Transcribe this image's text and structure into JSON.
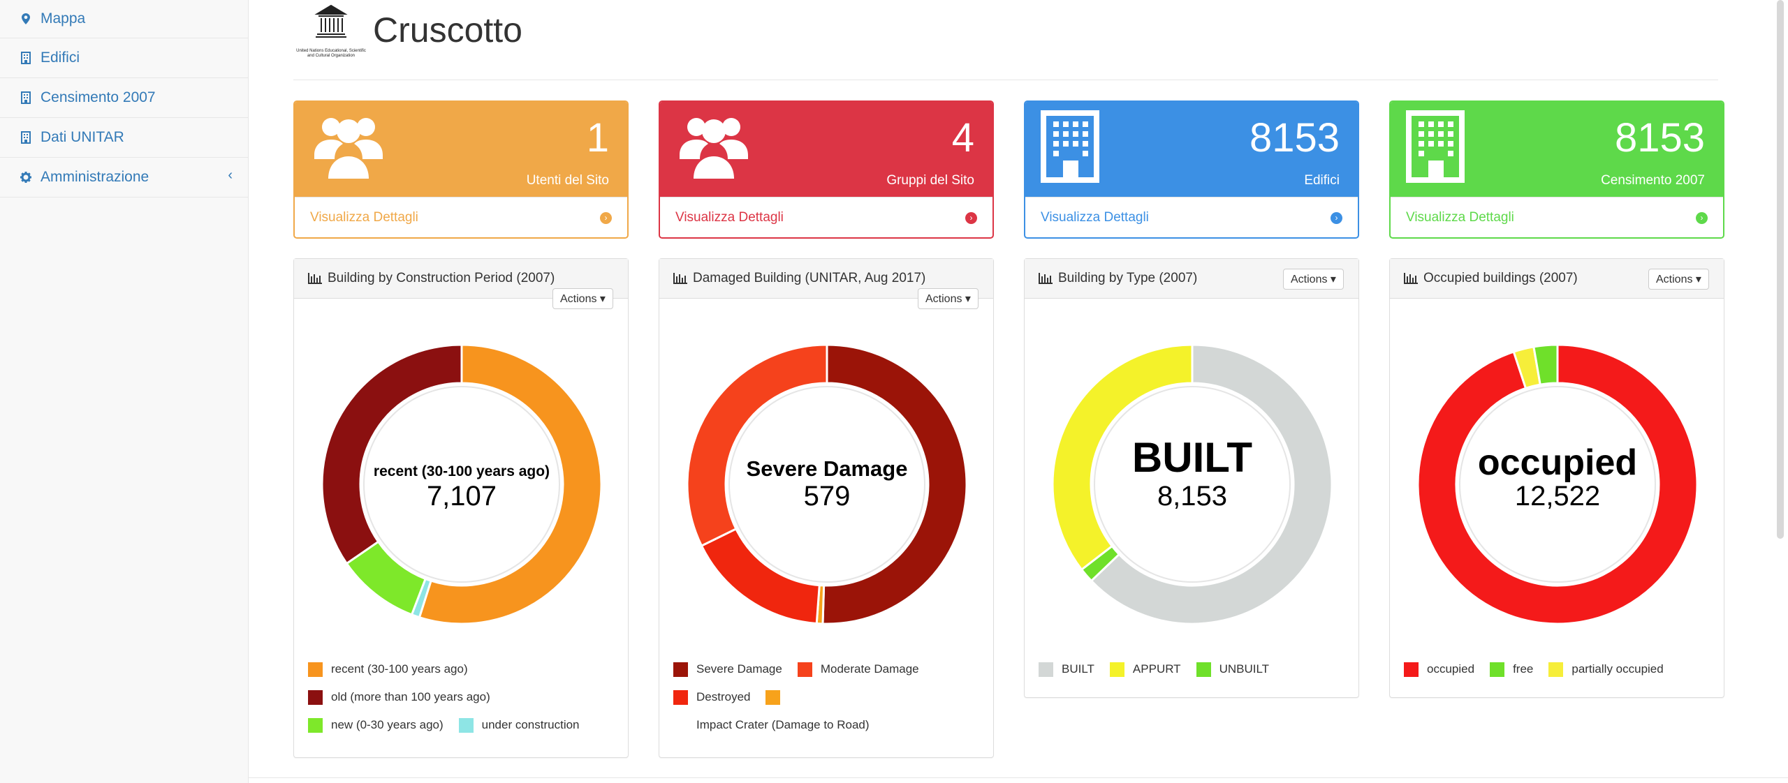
{
  "sidebar": {
    "items": [
      {
        "label": "Mappa",
        "icon": "map-marker-icon"
      },
      {
        "label": "Edifici",
        "icon": "building-icon"
      },
      {
        "label": "Censimento 2007",
        "icon": "building-icon"
      },
      {
        "label": "Dati UNITAR",
        "icon": "building-icon"
      },
      {
        "label": "Amministrazione",
        "icon": "gear-icon",
        "caret": "‹"
      }
    ]
  },
  "header": {
    "title": "Cruscotto",
    "logo_text": "United Nations Educational, Scientific and Cultural Organization"
  },
  "stats": [
    {
      "value": "1",
      "label": "Utenti del Sito",
      "link": "Visualizza Dettagli",
      "color": "#f0a848",
      "icon": "users-icon"
    },
    {
      "value": "4",
      "label": "Gruppi del Sito",
      "link": "Visualizza Dettagli",
      "color": "#dc3545",
      "icon": "users-icon"
    },
    {
      "value": "8153",
      "label": "Edifici",
      "link": "Visualizza Dettagli",
      "color": "#3c90e4",
      "icon": "building-icon"
    },
    {
      "value": "8153",
      "label": "Censimento 2007",
      "link": "Visualizza Dettagli",
      "color": "#5ed94a",
      "icon": "building-icon"
    }
  ],
  "actions_label": "Actions",
  "chart_data": [
    {
      "type": "pie",
      "title": "Building by Construction Period (2007)",
      "center_label": "recent (30-100 years ago)",
      "center_value": "7,107",
      "slices": [
        {
          "name": "recent (30-100 years ago)",
          "value": 7107,
          "color": "#f7941e"
        },
        {
          "name": "under construction",
          "value": 120,
          "color": "#8ee5e5"
        },
        {
          "name": "new (0-30 years ago)",
          "value": 1240,
          "color": "#7ee82a"
        },
        {
          "name": "old (more than 100 years ago)",
          "value": 4480,
          "color": "#8b1010"
        }
      ]
    },
    {
      "type": "pie",
      "title": "Damaged Building (UNITAR, Aug 2017)",
      "center_label": "Severe Damage",
      "center_value": "579",
      "slices": [
        {
          "name": "Severe Damage",
          "value": 579,
          "color": "#9b1408"
        },
        {
          "name": "Impact Crater (Damage to Road)",
          "value": 8,
          "color": "#f7a21b"
        },
        {
          "name": "Destroyed",
          "value": 190,
          "color": "#f0260e"
        },
        {
          "name": "Moderate Damage",
          "value": 370,
          "color": "#f5421c"
        }
      ]
    },
    {
      "type": "pie",
      "title": "Building by Type (2007)",
      "center_label": "BUILT",
      "center_value": "8,153",
      "slices": [
        {
          "name": "BUILT",
          "value": 8153,
          "color": "#d3d7d6"
        },
        {
          "name": "UNBUILT",
          "value": 220,
          "color": "#6fe02a"
        },
        {
          "name": "APPURT",
          "value": 4600,
          "color": "#f4f22a"
        }
      ]
    },
    {
      "type": "pie",
      "title": "Occupied buildings (2007)",
      "center_label": "occupied",
      "center_value": "12,522",
      "slices": [
        {
          "name": "occupied",
          "value": 12522,
          "color": "#f41a1a"
        },
        {
          "name": "partially occupied",
          "value": 310,
          "color": "#f6ee3a"
        },
        {
          "name": "free",
          "value": 360,
          "color": "#6fe02a"
        }
      ]
    }
  ]
}
